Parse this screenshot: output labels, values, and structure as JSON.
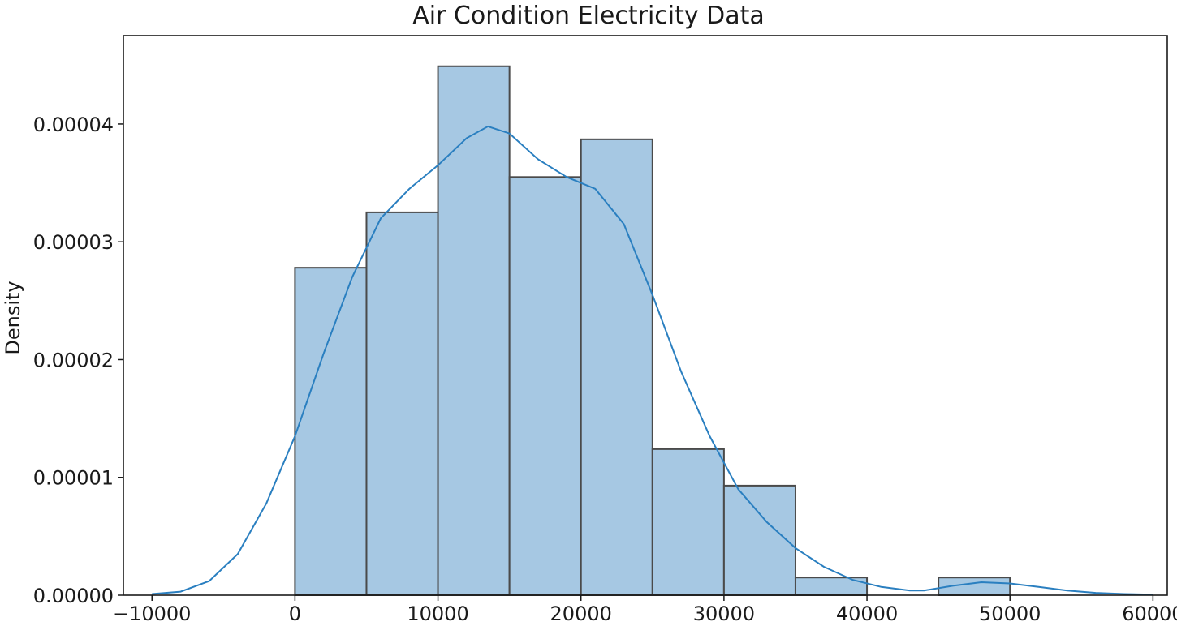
{
  "chart_data": {
    "type": "histogram",
    "title": "Air Condition Electricity Data",
    "xlabel": "",
    "ylabel": "Density",
    "xlim": [
      -12000,
      61000
    ],
    "ylim": [
      0,
      4.75e-05
    ],
    "x_ticks": [
      -10000,
      0,
      10000,
      20000,
      30000,
      40000,
      50000,
      60000
    ],
    "x_tick_labels": [
      "−10000",
      "0",
      "10000",
      "20000",
      "30000",
      "40000",
      "50000",
      "60000"
    ],
    "y_ticks": [
      0,
      1e-05,
      2e-05,
      3e-05,
      4e-05
    ],
    "y_tick_labels": [
      "0.00000",
      "0.00001",
      "0.00002",
      "0.00003",
      "0.00004"
    ],
    "grid": false,
    "bins": [
      {
        "x0": 0,
        "x1": 5000,
        "density": 2.78e-05
      },
      {
        "x0": 5000,
        "x1": 10000,
        "density": 3.25e-05
      },
      {
        "x0": 10000,
        "x1": 15000,
        "density": 4.49e-05
      },
      {
        "x0": 15000,
        "x1": 20000,
        "density": 3.55e-05
      },
      {
        "x0": 20000,
        "x1": 25000,
        "density": 3.87e-05
      },
      {
        "x0": 25000,
        "x1": 30000,
        "density": 1.24e-05
      },
      {
        "x0": 30000,
        "x1": 35000,
        "density": 9.3e-06
      },
      {
        "x0": 35000,
        "x1": 40000,
        "density": 1.5e-06
      },
      {
        "x0": 40000,
        "x1": 45000,
        "density": 0.0
      },
      {
        "x0": 45000,
        "x1": 50000,
        "density": 1.5e-06
      }
    ],
    "kde": {
      "x": [
        -10000,
        -8000,
        -6000,
        -4000,
        -2000,
        0,
        2000,
        4000,
        6000,
        8000,
        10000,
        12000,
        13500,
        15000,
        17000,
        19000,
        21000,
        23000,
        25000,
        27000,
        29000,
        31000,
        33000,
        35000,
        37000,
        39000,
        41000,
        43000,
        44000,
        46000,
        48000,
        50000,
        52000,
        54000,
        56000,
        58000,
        60000
      ],
      "y": [
        1e-07,
        3e-07,
        1.2e-06,
        3.5e-06,
        7.8e-06,
        1.35e-05,
        2.05e-05,
        2.7e-05,
        3.2e-05,
        3.45e-05,
        3.65e-05,
        3.88e-05,
        3.98e-05,
        3.92e-05,
        3.7e-05,
        3.55e-05,
        3.45e-05,
        3.15e-05,
        2.55e-05,
        1.9e-05,
        1.35e-05,
        9e-06,
        6.2e-06,
        4e-06,
        2.4e-06,
        1.3e-06,
        7e-07,
        4e-07,
        4e-07,
        8e-07,
        1.1e-06,
        1e-06,
        7e-07,
        4e-07,
        2e-07,
        1e-07,
        5e-08
      ]
    },
    "colors": {
      "bar_fill": "#a6c8e3",
      "bar_edge": "#4a4a4a",
      "kde_line": "#2a7fc0",
      "axis": "#1a1a1a"
    }
  }
}
